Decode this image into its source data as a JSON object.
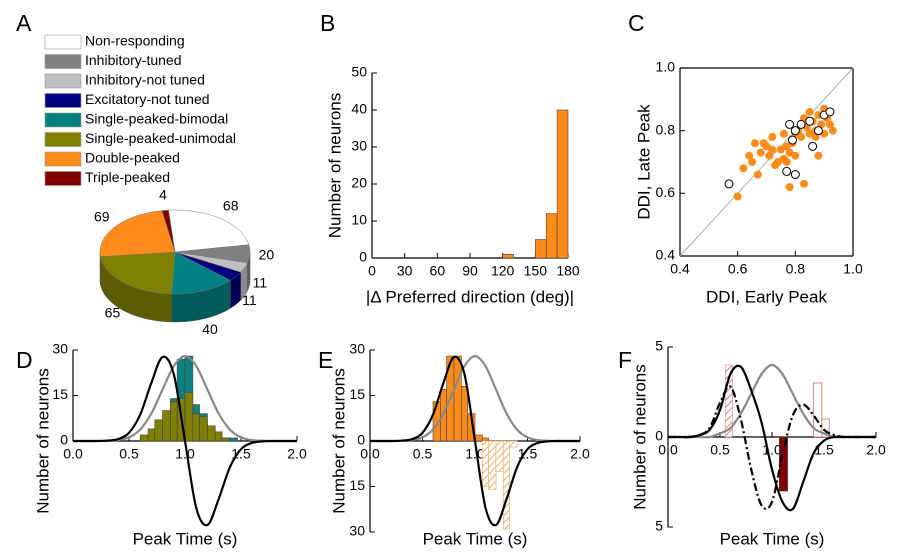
{
  "chart_data": [
    {
      "type": "pie",
      "panel": "A",
      "categories": [
        "Non-responding",
        "Inhibitory-tuned",
        "Inhibitory-not tuned",
        "Excitatory-not tuned",
        "Single-peaked-bimodal",
        "Single-peaked-unimodal",
        "Double-peaked",
        "Triple-peaked"
      ],
      "values": [
        68,
        20,
        11,
        11,
        40,
        65,
        69,
        4
      ],
      "colors": [
        "#ffffff",
        "#808080",
        "#c0c0c0",
        "#000080",
        "#008080",
        "#808000",
        "#ff8c1a",
        "#800000"
      ]
    },
    {
      "type": "histogram",
      "panel": "B",
      "xlabel": "|Δ Preferred direction (deg)|",
      "ylabel": "Number of neurons",
      "xlim": [
        0,
        180
      ],
      "ylim": [
        0,
        50
      ],
      "xticks": [
        0,
        30,
        60,
        90,
        120,
        150,
        180
      ],
      "yticks": [
        0,
        10,
        20,
        30,
        40,
        50
      ],
      "series": [
        {
          "bins": [
            120,
            130,
            140,
            150,
            160,
            170,
            180
          ],
          "values": [
            1,
            0,
            0,
            5,
            12,
            40
          ],
          "color": "#ff8c1a",
          "style": "solid"
        }
      ]
    },
    {
      "type": "scatter",
      "panel": "C",
      "xlabel": "DDI, Early Peak",
      "ylabel": "DDI, Late Peak",
      "xlim": [
        0.4,
        1.0
      ],
      "ylim": [
        0.4,
        1.0
      ],
      "xticks": [
        0.4,
        0.6,
        0.8,
        {
          "value": 1,
          "label": "1.0"
        }
      ],
      "yticks": [
        0.4,
        0.6,
        0.8,
        {
          "value": 1,
          "label": "1.0"
        }
      ],
      "box": true,
      "diagonal": true,
      "series": [
        {
          "color": "#ff8c1a",
          "marker": "filled",
          "x": [
            0.6,
            0.62,
            0.64,
            0.65,
            0.67,
            0.68,
            0.69,
            0.7,
            0.71,
            0.72,
            0.73,
            0.74,
            0.75,
            0.76,
            0.76,
            0.77,
            0.77,
            0.78,
            0.78,
            0.79,
            0.8,
            0.8,
            0.81,
            0.82,
            0.83,
            0.84,
            0.85,
            0.85,
            0.86,
            0.87,
            0.87,
            0.88,
            0.88,
            0.89,
            0.9,
            0.9,
            0.91,
            0.92,
            0.93,
            0.83,
            0.72,
            0.66
          ],
          "values": [
            0.59,
            0.68,
            0.72,
            0.7,
            0.66,
            0.73,
            0.76,
            0.75,
            0.72,
            0.74,
            0.69,
            0.7,
            0.74,
            0.71,
            0.79,
            0.7,
            0.75,
            0.73,
            0.62,
            0.76,
            0.79,
            0.72,
            0.8,
            0.78,
            0.84,
            0.81,
            0.79,
            0.86,
            0.83,
            0.78,
            0.8,
            0.85,
            0.72,
            0.82,
            0.79,
            0.87,
            0.84,
            0.82,
            0.8,
            0.63,
            0.78,
            0.76
          ]
        },
        {
          "color": "#000000",
          "marker": "open",
          "x": [
            0.57,
            0.77,
            0.8,
            0.79,
            0.8,
            0.82,
            0.85,
            0.86,
            0.88,
            0.9,
            0.92,
            0.78
          ],
          "values": [
            0.63,
            0.67,
            0.66,
            0.77,
            0.8,
            0.82,
            0.83,
            0.75,
            0.8,
            0.85,
            0.86,
            0.82
          ]
        }
      ]
    },
    {
      "type": "histogram",
      "panel": "D",
      "xlabel": "Peak Time (s)",
      "ylabel": "Number of neurons",
      "xlim": [
        0,
        2
      ],
      "ylim": [
        -30,
        30
      ],
      "xticks": [
        {
          "value": 0,
          "label": "0.0"
        },
        0.5,
        {
          "value": 1,
          "label": "1.0"
        },
        1.5,
        {
          "value": 2,
          "label": "2.0"
        }
      ],
      "yticks": [
        0,
        15,
        30
      ],
      "series": [
        {
          "bins": [
            0.6,
            0.67,
            0.73,
            0.8,
            0.87,
            0.93,
            1.0,
            1.07,
            1.13,
            1.2,
            1.27,
            1.33,
            1.4,
            1.47
          ],
          "values": [
            1,
            2,
            5,
            10,
            14,
            27,
            28,
            12,
            9,
            4,
            3,
            1,
            1
          ],
          "color": "#0f8080",
          "style": "solid"
        },
        {
          "bins": [
            0.6,
            0.67,
            0.73,
            0.8,
            0.87,
            0.93,
            1.0,
            1.07,
            1.13,
            1.2,
            1.27,
            1.33,
            1.4,
            1.47
          ],
          "values": [
            2,
            4,
            7,
            10,
            13,
            14,
            16,
            9,
            8,
            5,
            3,
            1,
            0
          ],
          "color": "#808000",
          "style": "solid"
        }
      ],
      "curves": [
        {
          "color": "#888888",
          "x": [
            0,
            0.1,
            0.2,
            0.3,
            0.4,
            0.5,
            0.6,
            0.7,
            0.8,
            0.9,
            1.0,
            1.1,
            1.2,
            1.3,
            1.4,
            1.5,
            1.6,
            1.7,
            1.8,
            1.9,
            2.0
          ],
          "values": [
            0,
            0,
            0,
            0.1,
            0.3,
            1.2,
            3.8,
            9.1,
            17,
            24.7,
            28,
            24.7,
            17,
            9.1,
            3.8,
            1.2,
            0.3,
            0.1,
            0,
            0,
            0
          ]
        },
        {
          "color": "#000000",
          "x": [
            0,
            0.1,
            0.2,
            0.3,
            0.4,
            0.5,
            0.6,
            0.7,
            0.8,
            0.9,
            1.0,
            1.1,
            1.2,
            1.3,
            1.4,
            1.5,
            1.6,
            1.7,
            1.8,
            1.9,
            2.0
          ],
          "values": [
            0,
            0,
            0,
            0.1,
            0.6,
            2.7,
            8.7,
            19.2,
            27.7,
            22,
            0,
            -22,
            -27.7,
            -19.2,
            -8.7,
            -2.7,
            -0.6,
            -0.1,
            0,
            0,
            0
          ]
        }
      ]
    },
    {
      "type": "histogram",
      "panel": "E",
      "xlabel": "Peak Time (s)",
      "ylabel": "Number of neurons",
      "xlim": [
        0,
        2
      ],
      "ylim": [
        -30,
        30
      ],
      "xticks": [
        {
          "value": 0,
          "label": "0.0"
        },
        0.5,
        {
          "value": 1,
          "label": "1.0"
        },
        1.5,
        {
          "value": 2,
          "label": "2.0"
        }
      ],
      "yticks": [
        {
          "value": -30,
          "label": "30"
        },
        {
          "value": -15,
          "label": "15"
        },
        0,
        15,
        30
      ],
      "series": [
        {
          "bins": [
            0.6,
            0.67,
            0.73,
            0.8,
            0.87,
            0.93,
            1.0,
            1.07,
            1.13
          ],
          "values": [
            13,
            17,
            28,
            28,
            18,
            9,
            2,
            1
          ],
          "color": "#ff8c1a",
          "style": "solid"
        },
        {
          "bins": [
            1.07,
            1.13,
            1.2,
            1.27,
            1.33,
            1.4
          ],
          "values": [
            -15,
            -16,
            -10,
            -29,
            -2
          ],
          "color": "#f0a860",
          "style": "hatched"
        }
      ],
      "curves": [
        {
          "color": "#888888",
          "x": [
            0,
            0.1,
            0.2,
            0.3,
            0.4,
            0.5,
            0.6,
            0.7,
            0.8,
            0.9,
            1.0,
            1.1,
            1.2,
            1.3,
            1.4,
            1.5,
            1.6,
            1.7,
            1.8,
            1.9,
            2.0
          ],
          "values": [
            0,
            0,
            0,
            0.1,
            0.3,
            1.2,
            3.8,
            9.1,
            17,
            24.7,
            28,
            24.7,
            17,
            9.1,
            3.8,
            1.2,
            0.3,
            0.1,
            0,
            0,
            0
          ]
        },
        {
          "color": "#000000",
          "x": [
            0,
            0.1,
            0.2,
            0.3,
            0.4,
            0.5,
            0.6,
            0.7,
            0.8,
            0.9,
            1.0,
            1.1,
            1.2,
            1.3,
            1.4,
            1.5,
            1.6,
            1.7,
            1.8,
            1.9,
            2.0
          ],
          "values": [
            0,
            0,
            0,
            0.1,
            0.6,
            2.7,
            8.7,
            19.2,
            27.7,
            22,
            0,
            -22,
            -27.7,
            -19.2,
            -8.7,
            -2.7,
            -0.6,
            -0.1,
            0,
            0,
            0
          ]
        }
      ]
    },
    {
      "type": "histogram",
      "panel": "F",
      "xlabel": "Peak Time (s)",
      "ylabel": "Number of neurons",
      "xlim": [
        0,
        2
      ],
      "ylim": [
        -5,
        5
      ],
      "xticks": [
        {
          "value": 0,
          "label": "0.0"
        },
        0.5,
        {
          "value": 1,
          "label": "1.0"
        },
        1.5,
        {
          "value": 2,
          "label": "2.0"
        }
      ],
      "yticks": [
        {
          "value": -5,
          "label": "5"
        },
        0,
        5
      ],
      "series": [
        {
          "bins": [
            0.55,
            0.62
          ],
          "values": [
            4
          ],
          "color": "#d98080",
          "style": "hatched"
        },
        {
          "bins": [
            1.07,
            1.15
          ],
          "values": [
            -3
          ],
          "color": "#800000",
          "style": "solid"
        },
        {
          "bins": [
            1.4,
            1.48,
            1.55
          ],
          "values": [
            3,
            1
          ],
          "color": "#c04040",
          "style": "outline"
        }
      ],
      "curves": [
        {
          "color": "#888888",
          "x": [
            0,
            0.1,
            0.2,
            0.3,
            0.4,
            0.5,
            0.6,
            0.7,
            0.8,
            0.9,
            1.0,
            1.1,
            1.2,
            1.3,
            1.4,
            1.5,
            1.6,
            1.7,
            1.8,
            1.9,
            2.0
          ],
          "values": [
            0,
            0,
            0,
            0,
            0,
            0.2,
            0.5,
            1.3,
            2.4,
            3.5,
            4,
            3.5,
            2.4,
            1.3,
            0.5,
            0.2,
            0,
            0,
            0,
            0,
            0
          ]
        },
        {
          "color": "#000000",
          "x": [
            0,
            0.1,
            0.2,
            0.3,
            0.4,
            0.5,
            0.6,
            0.7,
            0.8,
            0.9,
            1.0,
            1.1,
            1.2,
            1.3,
            1.4,
            1.5,
            1.6,
            1.7,
            1.8,
            1.9,
            2.0
          ],
          "values": [
            0,
            0,
            0,
            0.1,
            0.4,
            1.5,
            3.5,
            3.9,
            2.6,
            0.8,
            -1.8,
            -3.6,
            -4,
            -2.5,
            -0.9,
            -0.2,
            0,
            0,
            0,
            0,
            0
          ]
        },
        {
          "color": "#000000",
          "dash": true,
          "x": [
            0,
            0.1,
            0.2,
            0.3,
            0.4,
            0.5,
            0.6,
            0.7,
            0.8,
            0.9,
            1.0,
            1.1,
            1.2,
            1.3,
            1.4,
            1.5,
            1.6,
            1.7,
            1.8,
            1.9,
            2.0
          ],
          "values": [
            0,
            0,
            0,
            0.1,
            0.5,
            1.9,
            2.8,
            1,
            -1.8,
            -3.8,
            -3.6,
            -1,
            1.2,
            1.8,
            1.2,
            0.4,
            0.1,
            0,
            0,
            0,
            0
          ]
        }
      ]
    }
  ]
}
